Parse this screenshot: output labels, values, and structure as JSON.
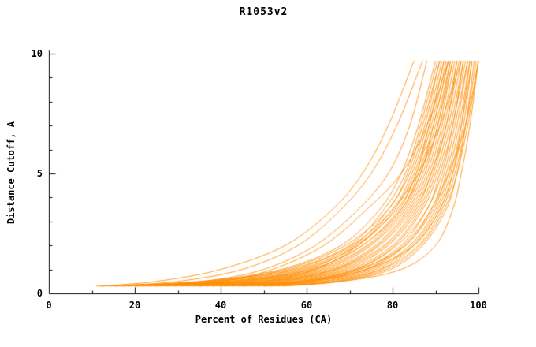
{
  "chart_data": {
    "type": "line",
    "title": "R1053v2",
    "xlabel": "Percent of Residues (CA)",
    "ylabel": "Distance Cutoff, A",
    "xlim": [
      0,
      100
    ],
    "ylim": [
      0,
      10
    ],
    "grid": false,
    "legend": false,
    "x_major_ticks": [
      0,
      20,
      40,
      60,
      80,
      100
    ],
    "x_minor_step": 10,
    "y_major_ticks": [
      0,
      5,
      10
    ],
    "y_minor_step": 1,
    "curve_color": "#ff8c00",
    "axis_color": "#000000",
    "description": "Bundle of per-model cumulative accuracy curves: percent of CA residues (x) under each distance cutoff in Angstroms (y). Curves start near y=0.3 between x=11 and x=55 and rise steeply toward y=9.7 between x=85 and x=100.",
    "y_knots": [
      0.3,
      0.5,
      1,
      2,
      3.5,
      5,
      7,
      9.7
    ],
    "curves_x": [
      [
        11,
        35,
        54,
        68,
        77,
        82,
        86,
        90
      ],
      [
        12.5,
        36,
        56,
        70,
        78,
        83,
        86.5,
        90.5
      ],
      [
        14,
        37,
        55,
        69,
        79,
        83.5,
        87,
        91
      ],
      [
        15.5,
        38,
        58,
        71,
        79,
        84,
        87.5,
        91
      ],
      [
        17,
        39,
        57,
        70.5,
        80,
        84.5,
        88,
        91.5
      ],
      [
        18.5,
        41,
        59,
        72,
        80.5,
        85,
        88.5,
        92
      ],
      [
        20,
        42,
        60,
        71.5,
        81,
        85.5,
        88.5,
        92
      ],
      [
        21.5,
        43,
        61,
        73,
        81.5,
        85.5,
        89,
        92.5
      ],
      [
        23,
        44,
        61,
        73,
        82,
        86,
        89.5,
        93
      ],
      [
        24.5,
        45,
        62,
        74,
        82,
        86.5,
        89.5,
        93
      ],
      [
        26,
        46,
        63,
        74.5,
        82.5,
        86.5,
        90,
        93.5
      ],
      [
        27.5,
        47,
        64,
        75,
        83,
        87,
        90.5,
        93.5
      ],
      [
        29,
        48.5,
        65,
        76,
        83.5,
        87.5,
        90.5,
        94
      ],
      [
        30.5,
        50,
        66,
        76.5,
        84,
        88,
        91,
        94
      ],
      [
        32,
        51,
        66.5,
        77,
        84.5,
        88.5,
        91.5,
        94.5
      ],
      [
        33.5,
        52,
        67,
        78,
        85,
        89,
        92,
        95
      ],
      [
        35,
        53,
        68,
        78.5,
        85.5,
        89,
        92.5,
        95
      ],
      [
        36.5,
        54,
        69,
        79,
        86,
        89.5,
        92.5,
        95.5
      ],
      [
        38,
        55,
        70,
        80,
        86.5,
        90,
        93,
        96
      ],
      [
        39.5,
        56.5,
        71,
        80.5,
        87,
        90.5,
        93.5,
        96.5
      ],
      [
        41,
        58,
        71.5,
        81,
        88,
        91,
        94,
        96.5
      ],
      [
        42.5,
        59,
        72.5,
        82,
        88,
        91.5,
        94,
        97
      ],
      [
        44,
        60,
        73.5,
        82.5,
        89,
        92,
        94.5,
        97.5
      ],
      [
        45.5,
        61,
        74,
        83,
        89.5,
        92.5,
        95,
        97.5
      ],
      [
        47,
        62,
        75,
        84,
        90,
        93,
        95.5,
        98
      ],
      [
        48.5,
        63.5,
        76,
        84.5,
        90.5,
        93.5,
        96,
        98.5
      ],
      [
        50,
        64.5,
        77,
        85,
        91,
        94,
        96.5,
        98.5
      ],
      [
        51.5,
        66,
        77.5,
        86,
        91.5,
        94.5,
        97,
        99
      ],
      [
        53,
        67,
        78.5,
        86.5,
        92,
        95,
        97,
        99.5
      ],
      [
        54.5,
        68,
        79.5,
        87,
        92.5,
        95,
        97.5,
        100
      ],
      [
        12,
        25,
        40,
        55,
        66,
        73,
        79,
        85
      ],
      [
        15,
        30,
        45,
        58,
        68,
        75,
        81,
        87
      ],
      [
        20,
        36,
        50,
        62,
        72,
        79,
        84,
        88
      ],
      [
        45,
        60,
        74,
        85,
        91,
        94,
        96,
        98
      ],
      [
        50,
        68,
        82,
        90,
        94,
        96,
        98,
        100
      ],
      [
        40,
        58,
        72,
        83,
        89,
        93,
        97,
        100
      ],
      [
        35,
        50,
        62,
        72,
        80,
        86,
        91,
        96
      ],
      [
        25,
        40,
        52,
        64,
        74,
        82,
        88,
        93
      ]
    ]
  }
}
